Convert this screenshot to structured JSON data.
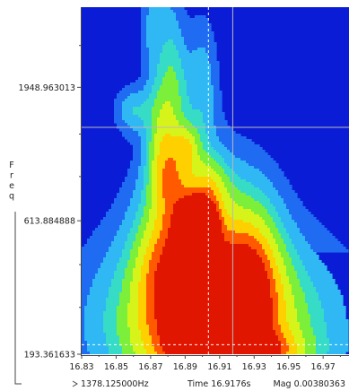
{
  "chart_data": {
    "type": "heatmap",
    "title": "",
    "ylabel": "Freq",
    "xlabel": "",
    "y_scale": "log",
    "xlim": [
      16.83,
      16.985
    ],
    "ylim": [
      193.361633,
      3900
    ],
    "x_ticks": [
      "16.83",
      "16.85",
      "16.87",
      "16.89",
      "16.91",
      "16.93",
      "16.95",
      "16.97"
    ],
    "y_ticks": [
      {
        "value": 1948.963013,
        "label": "1948.963013"
      },
      {
        "value": 613.884888,
        "label": "613.884888"
      },
      {
        "value": 193.361633,
        "label": "193.361633"
      }
    ],
    "colormap": [
      "#0a1cd6",
      "#1f6cf2",
      "#2fb8f4",
      "#36dcc6",
      "#7bef3a",
      "#d7f41a",
      "#ffd000",
      "#ff5a00",
      "#e11600",
      "#d6d6d6"
    ],
    "crosshair_solid": {
      "x": 16.9176,
      "y": 1378.125
    },
    "crosshair_dashed": {
      "x": 16.9035,
      "y": 210
    },
    "blobs": [
      {
        "x": 16.906,
        "y": 210,
        "sx": 0.03,
        "sy": 0.16,
        "mag": 0.62
      },
      {
        "x": 16.894,
        "y": 212,
        "sx": 0.008,
        "sy": 0.07,
        "mag": 0.55
      },
      {
        "x": 16.925,
        "y": 198,
        "sx": 0.022,
        "sy": 0.05,
        "mag": 0.45
      },
      {
        "x": 16.91,
        "y": 240,
        "sx": 0.05,
        "sy": 0.22,
        "mag": 0.3
      },
      {
        "x": 16.895,
        "y": 470,
        "sx": 0.007,
        "sy": 0.08,
        "mag": 0.98
      },
      {
        "x": 16.897,
        "y": 600,
        "sx": 0.006,
        "sy": 0.06,
        "mag": 0.9
      },
      {
        "x": 16.904,
        "y": 575,
        "sx": 0.004,
        "sy": 0.05,
        "mag": 0.55
      },
      {
        "x": 16.898,
        "y": 520,
        "sx": 0.022,
        "sy": 0.22,
        "mag": 0.42
      },
      {
        "x": 16.905,
        "y": 340,
        "sx": 0.035,
        "sy": 0.18,
        "mag": 0.32
      },
      {
        "x": 16.93,
        "y": 450,
        "sx": 0.012,
        "sy": 0.18,
        "mag": 0.32
      },
      {
        "x": 16.922,
        "y": 330,
        "sx": 0.012,
        "sy": 0.12,
        "mag": 0.3
      },
      {
        "x": 16.875,
        "y": 420,
        "sx": 0.01,
        "sy": 0.15,
        "mag": 0.28
      },
      {
        "x": 16.885,
        "y": 760,
        "sx": 0.01,
        "sy": 0.1,
        "mag": 0.32
      },
      {
        "x": 16.905,
        "y": 820,
        "sx": 0.007,
        "sy": 0.08,
        "mag": 0.28
      },
      {
        "x": 16.878,
        "y": 1020,
        "sx": 0.007,
        "sy": 0.1,
        "mag": 0.34
      },
      {
        "x": 16.891,
        "y": 1160,
        "sx": 0.005,
        "sy": 0.06,
        "mag": 0.34
      },
      {
        "x": 16.86,
        "y": 1600,
        "sx": 0.007,
        "sy": 0.06,
        "mag": 0.22
      },
      {
        "x": 16.875,
        "y": 1500,
        "sx": 0.006,
        "sy": 0.12,
        "mag": 0.24
      },
      {
        "x": 16.885,
        "y": 1750,
        "sx": 0.006,
        "sy": 0.16,
        "mag": 0.22
      },
      {
        "x": 16.9,
        "y": 1900,
        "sx": 0.006,
        "sy": 0.18,
        "mag": 0.2
      },
      {
        "x": 16.88,
        "y": 2700,
        "sx": 0.006,
        "sy": 0.2,
        "mag": 0.17
      },
      {
        "x": 16.87,
        "y": 3300,
        "sx": 0.004,
        "sy": 0.12,
        "mag": 0.14
      }
    ]
  },
  "status": {
    "freq": "1378.125000Hz",
    "time": "Time 16.9176s",
    "mag": "Mag 0.00380363"
  }
}
